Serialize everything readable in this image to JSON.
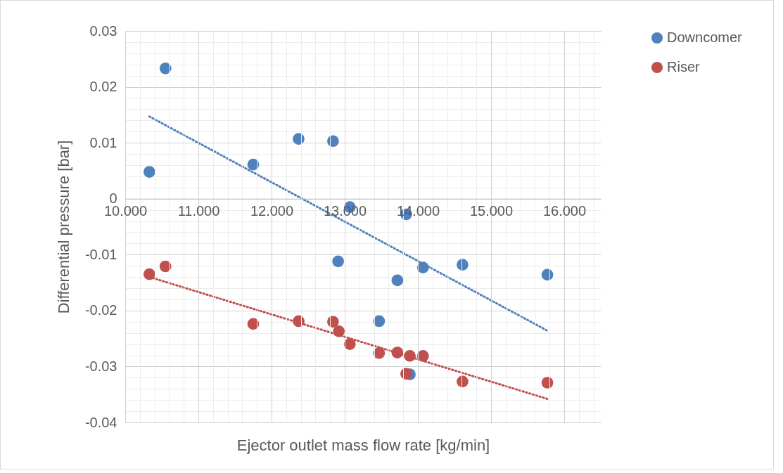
{
  "chart_data": {
    "type": "scatter",
    "xlabel": "Ejector outlet mass flow rate [kg/min]",
    "ylabel": "Differential pressure [bar]",
    "marker": "circle",
    "grid": true,
    "legend": "right",
    "xlim": [
      10,
      16.5
    ],
    "ylim": [
      -0.04,
      0.03
    ],
    "xticks": [
      {
        "value": 10,
        "label": "10.000"
      },
      {
        "value": 10.2,
        "label": null
      },
      {
        "value": 10.4,
        "label": null
      },
      {
        "value": 10.6,
        "label": null
      },
      {
        "value": 10.8,
        "label": null
      },
      {
        "value": 11,
        "label": "11.000"
      },
      {
        "value": 11.2,
        "label": null
      },
      {
        "value": 11.4,
        "label": null
      },
      {
        "value": 11.6,
        "label": null
      },
      {
        "value": 11.8,
        "label": null
      },
      {
        "value": 12,
        "label": "12.000"
      },
      {
        "value": 12.2,
        "label": null
      },
      {
        "value": 12.4,
        "label": null
      },
      {
        "value": 12.6,
        "label": null
      },
      {
        "value": 12.8,
        "label": null
      },
      {
        "value": 13,
        "label": "13.000"
      },
      {
        "value": 13.2,
        "label": null
      },
      {
        "value": 13.4,
        "label": null
      },
      {
        "value": 13.6,
        "label": null
      },
      {
        "value": 13.8,
        "label": null
      },
      {
        "value": 14,
        "label": "14.000"
      },
      {
        "value": 14.2,
        "label": null
      },
      {
        "value": 14.4,
        "label": null
      },
      {
        "value": 14.6,
        "label": null
      },
      {
        "value": 14.8,
        "label": null
      },
      {
        "value": 15,
        "label": "15.000"
      },
      {
        "value": 15.2,
        "label": null
      },
      {
        "value": 15.4,
        "label": null
      },
      {
        "value": 15.6,
        "label": null
      },
      {
        "value": 15.8,
        "label": null
      },
      {
        "value": 16,
        "label": "16.000"
      },
      {
        "value": 16.2,
        "label": null
      },
      {
        "value": 16.4,
        "label": null
      }
    ],
    "yticks": [
      -0.04,
      {
        "value": -0.038,
        "label": null
      },
      {
        "value": -0.036,
        "label": null
      },
      {
        "value": -0.034,
        "label": null
      },
      {
        "value": -0.032,
        "label": null
      },
      -0.03,
      {
        "value": -0.028,
        "label": null
      },
      {
        "value": -0.026,
        "label": null
      },
      {
        "value": -0.024,
        "label": null
      },
      {
        "value": -0.022,
        "label": null
      },
      -0.02,
      {
        "value": -0.018,
        "label": null
      },
      {
        "value": -0.016,
        "label": null
      },
      {
        "value": -0.014,
        "label": null
      },
      {
        "value": -0.012,
        "label": null
      },
      -0.01,
      {
        "value": -0.008,
        "label": null
      },
      {
        "value": -0.006,
        "label": null
      },
      {
        "value": -0.004,
        "label": null
      },
      {
        "value": -0.002,
        "label": null
      },
      0,
      {
        "value": 0.002,
        "label": null
      },
      {
        "value": 0.004,
        "label": null
      },
      {
        "value": 0.006,
        "label": null
      },
      {
        "value": 0.008,
        "label": null
      },
      0.01,
      {
        "value": 0.012,
        "label": null
      },
      {
        "value": 0.014,
        "label": null
      },
      {
        "value": 0.016,
        "label": null
      },
      {
        "value": 0.018,
        "label": null
      },
      0.02,
      {
        "value": 0.022,
        "label": null
      },
      {
        "value": 0.024,
        "label": null
      },
      {
        "value": 0.026,
        "label": null
      },
      {
        "value": 0.028,
        "label": null
      },
      0.03
    ],
    "series": [
      {
        "name": "Downcomer",
        "color": "#4f81bd",
        "x": [
          10.33,
          10.55,
          11.75,
          12.37,
          12.84,
          13.07,
          13.84,
          12.91,
          13.72,
          14.07,
          14.61,
          15.77,
          13.47,
          13.89
        ],
        "values": [
          0.0048,
          0.0233,
          0.0061,
          0.0107,
          0.0103,
          -0.0015,
          -0.0028,
          -0.0112,
          -0.0146,
          -0.0123,
          -0.0118,
          -0.0136,
          -0.0219,
          -0.0314
        ]
      },
      {
        "name": "Riser",
        "color": "#c0504d",
        "x": [
          10.33,
          10.55,
          11.75,
          12.37,
          12.84,
          12.92,
          13.07,
          13.47,
          13.72,
          13.89,
          14.07,
          13.84,
          14.61,
          15.77
        ],
        "values": [
          -0.0135,
          -0.0121,
          -0.0224,
          -0.0219,
          -0.022,
          -0.0237,
          -0.026,
          -0.0276,
          -0.0275,
          -0.0281,
          -0.0281,
          -0.0313,
          -0.0327,
          -0.0329
        ]
      },
      {
        "type": "line",
        "line_style": "dotted",
        "marker": "none",
        "color": "#4f81bd",
        "x": [
          10.33,
          15.77
        ],
        "values": [
          0.0147,
          -0.0236
        ]
      },
      {
        "type": "line",
        "line_style": "dotted",
        "marker": "none",
        "color": "#c0504d",
        "x": [
          10.33,
          15.77
        ],
        "values": [
          -0.014,
          -0.0358
        ]
      }
    ]
  }
}
